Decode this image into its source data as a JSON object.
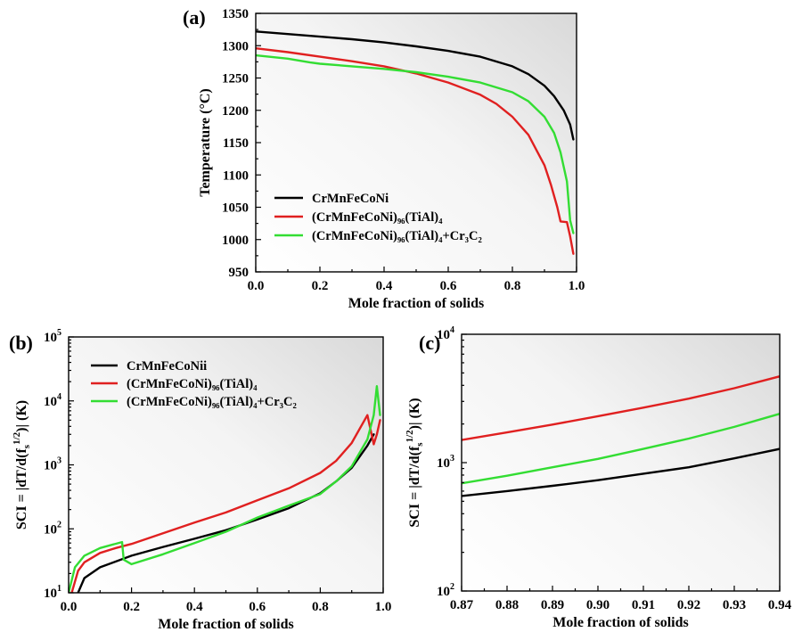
{
  "chart_data": [
    {
      "panel": "(a)",
      "type": "line",
      "xlabel": "Mole fraction of solids",
      "ylabel": "Temperature (°C)",
      "xlim": [
        0,
        1
      ],
      "ylim": [
        950,
        1350
      ],
      "x_ticks": [
        0.0,
        0.2,
        0.4,
        0.6,
        0.8,
        1.0
      ],
      "x_tick_labels": [
        "0.0",
        "0.2",
        "0.4",
        "0.6",
        "0.8",
        "1.0"
      ],
      "y_ticks": [
        950,
        1000,
        1050,
        1100,
        1150,
        1200,
        1250,
        1300,
        1350
      ],
      "y_tick_labels": [
        "950",
        "1000",
        "1050",
        "1100",
        "1150",
        "1200",
        "1250",
        "1300",
        "1350"
      ],
      "y_scale": "linear",
      "legend_position": "lower-left",
      "series": [
        {
          "name": "CrMnFeCoNi",
          "color": "#000000",
          "x": [
            0,
            0.1,
            0.2,
            0.3,
            0.4,
            0.5,
            0.6,
            0.7,
            0.8,
            0.85,
            0.9,
            0.93,
            0.96,
            0.98,
            0.99
          ],
          "y": [
            1322,
            1318,
            1314,
            1310,
            1305,
            1299,
            1292,
            1283,
            1268,
            1256,
            1238,
            1222,
            1200,
            1178,
            1155
          ]
        },
        {
          "name": "(CrMnFeCoNi)₉₆(TiAl)₄",
          "color": "#e02020",
          "x": [
            0,
            0.1,
            0.2,
            0.3,
            0.4,
            0.5,
            0.6,
            0.7,
            0.75,
            0.8,
            0.85,
            0.9,
            0.92,
            0.94,
            0.95,
            0.97,
            0.98,
            0.99
          ],
          "y": [
            1296,
            1290,
            1283,
            1276,
            1268,
            1257,
            1243,
            1224,
            1210,
            1190,
            1162,
            1115,
            1085,
            1050,
            1028,
            1027,
            1005,
            978
          ]
        },
        {
          "name": "(CrMnFeCoNi)₉₆(TiAl)₄+Cr₃C₂",
          "color": "#33dd33",
          "x": [
            0,
            0.1,
            0.17,
            0.2,
            0.3,
            0.4,
            0.5,
            0.6,
            0.7,
            0.8,
            0.85,
            0.9,
            0.93,
            0.95,
            0.97,
            0.98,
            0.99
          ],
          "y": [
            1285,
            1280,
            1274,
            1272,
            1268,
            1264,
            1259,
            1252,
            1243,
            1228,
            1214,
            1190,
            1165,
            1135,
            1090,
            1030,
            1010
          ]
        }
      ]
    },
    {
      "panel": "(b)",
      "type": "line",
      "xlabel": "Mole fraction of solids",
      "ylabel": "SCI = |dT/d(fs^1/2)| (K)",
      "ylabel_parts": {
        "main": "SCI = |dT/d(f",
        "sub": "s",
        "sup": "1/2",
        "tail": ")| (K)"
      },
      "xlim": [
        0,
        1
      ],
      "ylim": [
        10,
        100000
      ],
      "y_scale": "log",
      "x_ticks": [
        0.0,
        0.2,
        0.4,
        0.6,
        0.8,
        1.0
      ],
      "x_tick_labels": [
        "0.0",
        "0.2",
        "0.4",
        "0.6",
        "0.8",
        "1.0"
      ],
      "y_ticks": [
        10,
        100,
        1000,
        10000,
        100000
      ],
      "y_tick_exponents": [
        "1",
        "2",
        "3",
        "4",
        "5"
      ],
      "legend_position": "top-left",
      "series": [
        {
          "name": "CrMnFeCoNii",
          "color": "#000000",
          "x": [
            0.03,
            0.05,
            0.1,
            0.2,
            0.3,
            0.4,
            0.5,
            0.6,
            0.7,
            0.8,
            0.85,
            0.9,
            0.95,
            0.97
          ],
          "y": [
            10,
            17,
            25,
            38,
            52,
            70,
            95,
            140,
            210,
            360,
            550,
            900,
            2000,
            3000
          ]
        },
        {
          "name": "(CrMnFeCoNi)₉₆(TiAl)₄",
          "color": "#e02020",
          "x": [
            0.01,
            0.03,
            0.05,
            0.1,
            0.15,
            0.2,
            0.3,
            0.4,
            0.5,
            0.6,
            0.7,
            0.8,
            0.85,
            0.9,
            0.95,
            0.97,
            0.98,
            0.99
          ],
          "y": [
            10,
            22,
            30,
            42,
            50,
            58,
            85,
            125,
            180,
            280,
            430,
            750,
            1150,
            2200,
            6000,
            2100,
            3000,
            5000
          ]
        },
        {
          "name": "(CrMnFeCoNi)₉₆(TiAl)₄+Cr₃C₂",
          "color": "#33dd33",
          "x": [
            0.0,
            0.02,
            0.05,
            0.1,
            0.17,
            0.175,
            0.2,
            0.3,
            0.4,
            0.5,
            0.6,
            0.7,
            0.8,
            0.85,
            0.9,
            0.95,
            0.97,
            0.98,
            0.99
          ],
          "y": [
            10,
            25,
            38,
            50,
            62,
            33,
            28,
            40,
            60,
            90,
            150,
            230,
            350,
            550,
            950,
            2500,
            6000,
            17000,
            6000
          ]
        }
      ]
    },
    {
      "panel": "(c)",
      "type": "line",
      "xlabel": "Mole fraction of solids",
      "ylabel": "SCI = |dT/d(fs^1/2)| (K)",
      "ylabel_parts": {
        "main": "SCI = |dT/d(f",
        "sub": "s",
        "sup": "1/2",
        "tail": ")| (K)"
      },
      "xlim": [
        0.87,
        0.94
      ],
      "ylim": [
        100,
        10000
      ],
      "y_scale": "log",
      "x_ticks": [
        0.87,
        0.88,
        0.89,
        0.9,
        0.91,
        0.92,
        0.93,
        0.94
      ],
      "x_tick_labels": [
        "0.87",
        "0.88",
        "0.89",
        "0.90",
        "0.91",
        "0.92",
        "0.93",
        "0.94"
      ],
      "y_ticks": [
        100,
        1000,
        10000
      ],
      "y_tick_exponents": [
        "2",
        "3",
        "4"
      ],
      "series": [
        {
          "name": "CrMnFeCoNi",
          "color": "#000000",
          "x": [
            0.87,
            0.88,
            0.89,
            0.9,
            0.91,
            0.92,
            0.93,
            0.94
          ],
          "y": [
            550,
            600,
            660,
            730,
            820,
            920,
            1080,
            1280
          ]
        },
        {
          "name": "(CrMnFeCoNi)₉₆(TiAl)₄",
          "color": "#e02020",
          "x": [
            0.87,
            0.88,
            0.89,
            0.9,
            0.91,
            0.92,
            0.93,
            0.94
          ],
          "y": [
            1500,
            1720,
            1980,
            2300,
            2680,
            3150,
            3800,
            4700
          ]
        },
        {
          "name": "(CrMnFeCoNi)₉₆(TiAl)₄+Cr₃C₂",
          "color": "#33dd33",
          "x": [
            0.87,
            0.88,
            0.89,
            0.9,
            0.91,
            0.92,
            0.93,
            0.94
          ],
          "y": [
            690,
            790,
            920,
            1070,
            1280,
            1540,
            1900,
            2400
          ]
        }
      ]
    }
  ]
}
